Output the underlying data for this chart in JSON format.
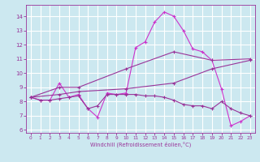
{
  "bg_color": "#cce8f0",
  "grid_color": "#ffffff",
  "line_color_dark": "#993399",
  "line_color_light": "#cc33cc",
  "xlim": [
    -0.5,
    23.5
  ],
  "ylim": [
    5.8,
    14.8
  ],
  "yticks": [
    6,
    7,
    8,
    9,
    10,
    11,
    12,
    13,
    14
  ],
  "xticks": [
    0,
    1,
    2,
    3,
    4,
    5,
    6,
    7,
    8,
    9,
    10,
    11,
    12,
    13,
    14,
    15,
    16,
    17,
    18,
    19,
    20,
    21,
    22,
    23
  ],
  "xlabel": "Windchill (Refroidissement éolien,°C)",
  "line1_x": [
    0,
    1,
    2,
    3,
    4,
    5,
    6,
    7,
    8,
    9,
    10,
    11,
    12,
    13,
    14,
    15,
    16,
    17,
    18,
    19,
    20,
    21,
    22,
    23
  ],
  "line1_y": [
    8.3,
    8.1,
    8.1,
    9.3,
    8.3,
    8.5,
    7.5,
    6.9,
    8.6,
    8.5,
    8.6,
    11.8,
    12.2,
    13.6,
    14.3,
    14.0,
    13.0,
    11.7,
    11.5,
    10.9,
    8.9,
    6.3,
    6.6,
    7.0
  ],
  "line2_x": [
    0,
    1,
    2,
    3,
    4,
    5,
    6,
    7,
    8,
    9,
    10,
    11,
    12,
    13,
    14,
    15,
    16,
    17,
    18,
    19,
    20,
    21,
    22,
    23
  ],
  "line2_y": [
    8.3,
    8.1,
    8.1,
    8.2,
    8.3,
    8.4,
    7.5,
    7.7,
    8.5,
    8.5,
    8.5,
    8.5,
    8.4,
    8.4,
    8.3,
    8.1,
    7.8,
    7.7,
    7.7,
    7.5,
    8.0,
    7.5,
    7.2,
    7.0
  ],
  "line3_x": [
    0,
    3,
    5,
    10,
    15,
    19,
    23
  ],
  "line3_y": [
    8.3,
    9.0,
    9.0,
    10.3,
    11.5,
    10.9,
    11.0
  ],
  "line4_x": [
    0,
    3,
    5,
    10,
    15,
    19,
    23
  ],
  "line4_y": [
    8.3,
    8.5,
    8.7,
    8.9,
    9.3,
    10.3,
    10.9
  ]
}
